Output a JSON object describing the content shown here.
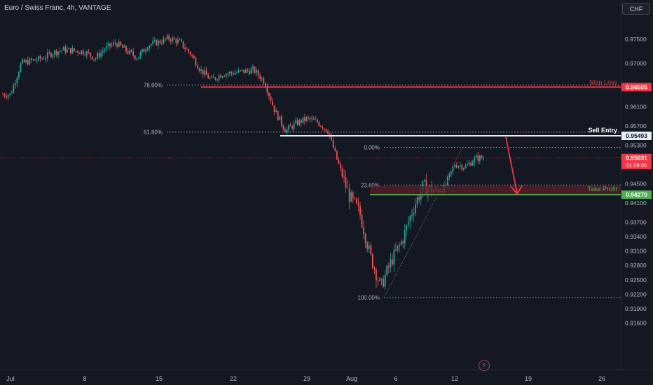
{
  "header": {
    "symbol_title": "Euro / Swiss Franc, 4h, VANTAGE",
    "currency": "CHF"
  },
  "price_axis": {
    "labels": [
      "0.97500",
      "0.97000",
      "0.96505",
      "0.96100",
      "0.95700",
      "0.95493",
      "0.95300",
      "0.95031",
      "01:29:06",
      "0.94500",
      "0.94270",
      "0.94100",
      "0.93700",
      "0.93400",
      "0.93100",
      "0.92800",
      "0.92500",
      "0.92200",
      "0.91900",
      "0.91600"
    ]
  },
  "time_axis": {
    "labels": [
      "Jul",
      "8",
      "15",
      "22",
      "29",
      "Aug",
      "6",
      "12",
      "19",
      "26"
    ]
  },
  "fibonacci": {
    "levels": [
      {
        "label": "78.60%",
        "price": 0.9655
      },
      {
        "label": "61.80%",
        "price": 0.9557
      },
      {
        "label": "0.00%",
        "price": 0.9525
      },
      {
        "label": "23.60%",
        "price": 0.9447
      },
      {
        "label": "100.00%",
        "price": 0.9213
      }
    ]
  },
  "annotations": {
    "stop_loss": {
      "label": "Stop Loss",
      "price": "0.96505",
      "color": "#f23645"
    },
    "sell_entry": {
      "label": "Sell Entry",
      "price": "0.95493",
      "color": "#e6ecf5"
    },
    "take_profit": {
      "label": "Take Profit",
      "price": "0.94270",
      "color": "#4caf50"
    },
    "current_price": {
      "price": "0.95031",
      "countdown": "01:29:06",
      "color": "#f23645"
    }
  },
  "colors": {
    "up_candle": "#26a69a",
    "down_candle": "#ef5350",
    "background": "#141823",
    "grid": "#1e222d"
  },
  "icons": {
    "lightning": "lightning-icon"
  },
  "chart_data": {
    "type": "candlestick",
    "instrument": "Euro / Swiss Franc",
    "timeframe": "4h",
    "ylim": [
      0.9145,
      0.979
    ],
    "x_ticks": [
      "Jul",
      "8",
      "15",
      "22",
      "29",
      "Aug",
      "6",
      "12",
      "19",
      "26"
    ],
    "close_path": [
      [
        "Jul 1",
        0.9635
      ],
      [
        "Jul 2",
        0.97
      ],
      [
        "Jul 4",
        0.971
      ],
      [
        "Jul 5",
        0.9722
      ],
      [
        "Jul 6",
        0.9728
      ],
      [
        "Jul 8",
        0.9724
      ],
      [
        "Jul 9",
        0.971
      ],
      [
        "Jul 10",
        0.9732
      ],
      [
        "Jul 11",
        0.9742
      ],
      [
        "Jul 12",
        0.9725
      ],
      [
        "Jul 13",
        0.9712
      ],
      [
        "Jul 14",
        0.9738
      ],
      [
        "Jul 15",
        0.9744
      ],
      [
        "Jul 16",
        0.9752
      ],
      [
        "Jul 17",
        0.9744
      ],
      [
        "Jul 18",
        0.972
      ],
      [
        "Jul 19",
        0.9685
      ],
      [
        "Jul 20",
        0.9665
      ],
      [
        "Jul 21",
        0.9678
      ],
      [
        "Jul 22",
        0.968
      ],
      [
        "Jul 23",
        0.9683
      ],
      [
        "Jul 24",
        0.9686
      ],
      [
        "Jul 25",
        0.9662
      ],
      [
        "Jul 26",
        0.96
      ],
      [
        "Jul 27",
        0.956
      ],
      [
        "Jul 28",
        0.9575
      ],
      [
        "Jul 29",
        0.9585
      ],
      [
        "Jul 30",
        0.9578
      ],
      [
        "Jul 31",
        0.956
      ],
      [
        "Aug 1",
        0.949
      ],
      [
        "Aug 2",
        0.9425
      ],
      [
        "Aug 3",
        0.939
      ],
      [
        "Aug 4",
        0.93
      ],
      [
        "Aug 5",
        0.9235
      ],
      [
        "Aug 6",
        0.929
      ],
      [
        "Aug 7",
        0.933
      ],
      [
        "Aug 8",
        0.9395
      ],
      [
        "Aug 9",
        0.9445
      ],
      [
        "Aug 10",
        0.9435
      ],
      [
        "Aug 11",
        0.944
      ],
      [
        "Aug 12",
        0.949
      ],
      [
        "Aug 13",
        0.9485
      ],
      [
        "Aug 14",
        0.9503
      ]
    ]
  }
}
